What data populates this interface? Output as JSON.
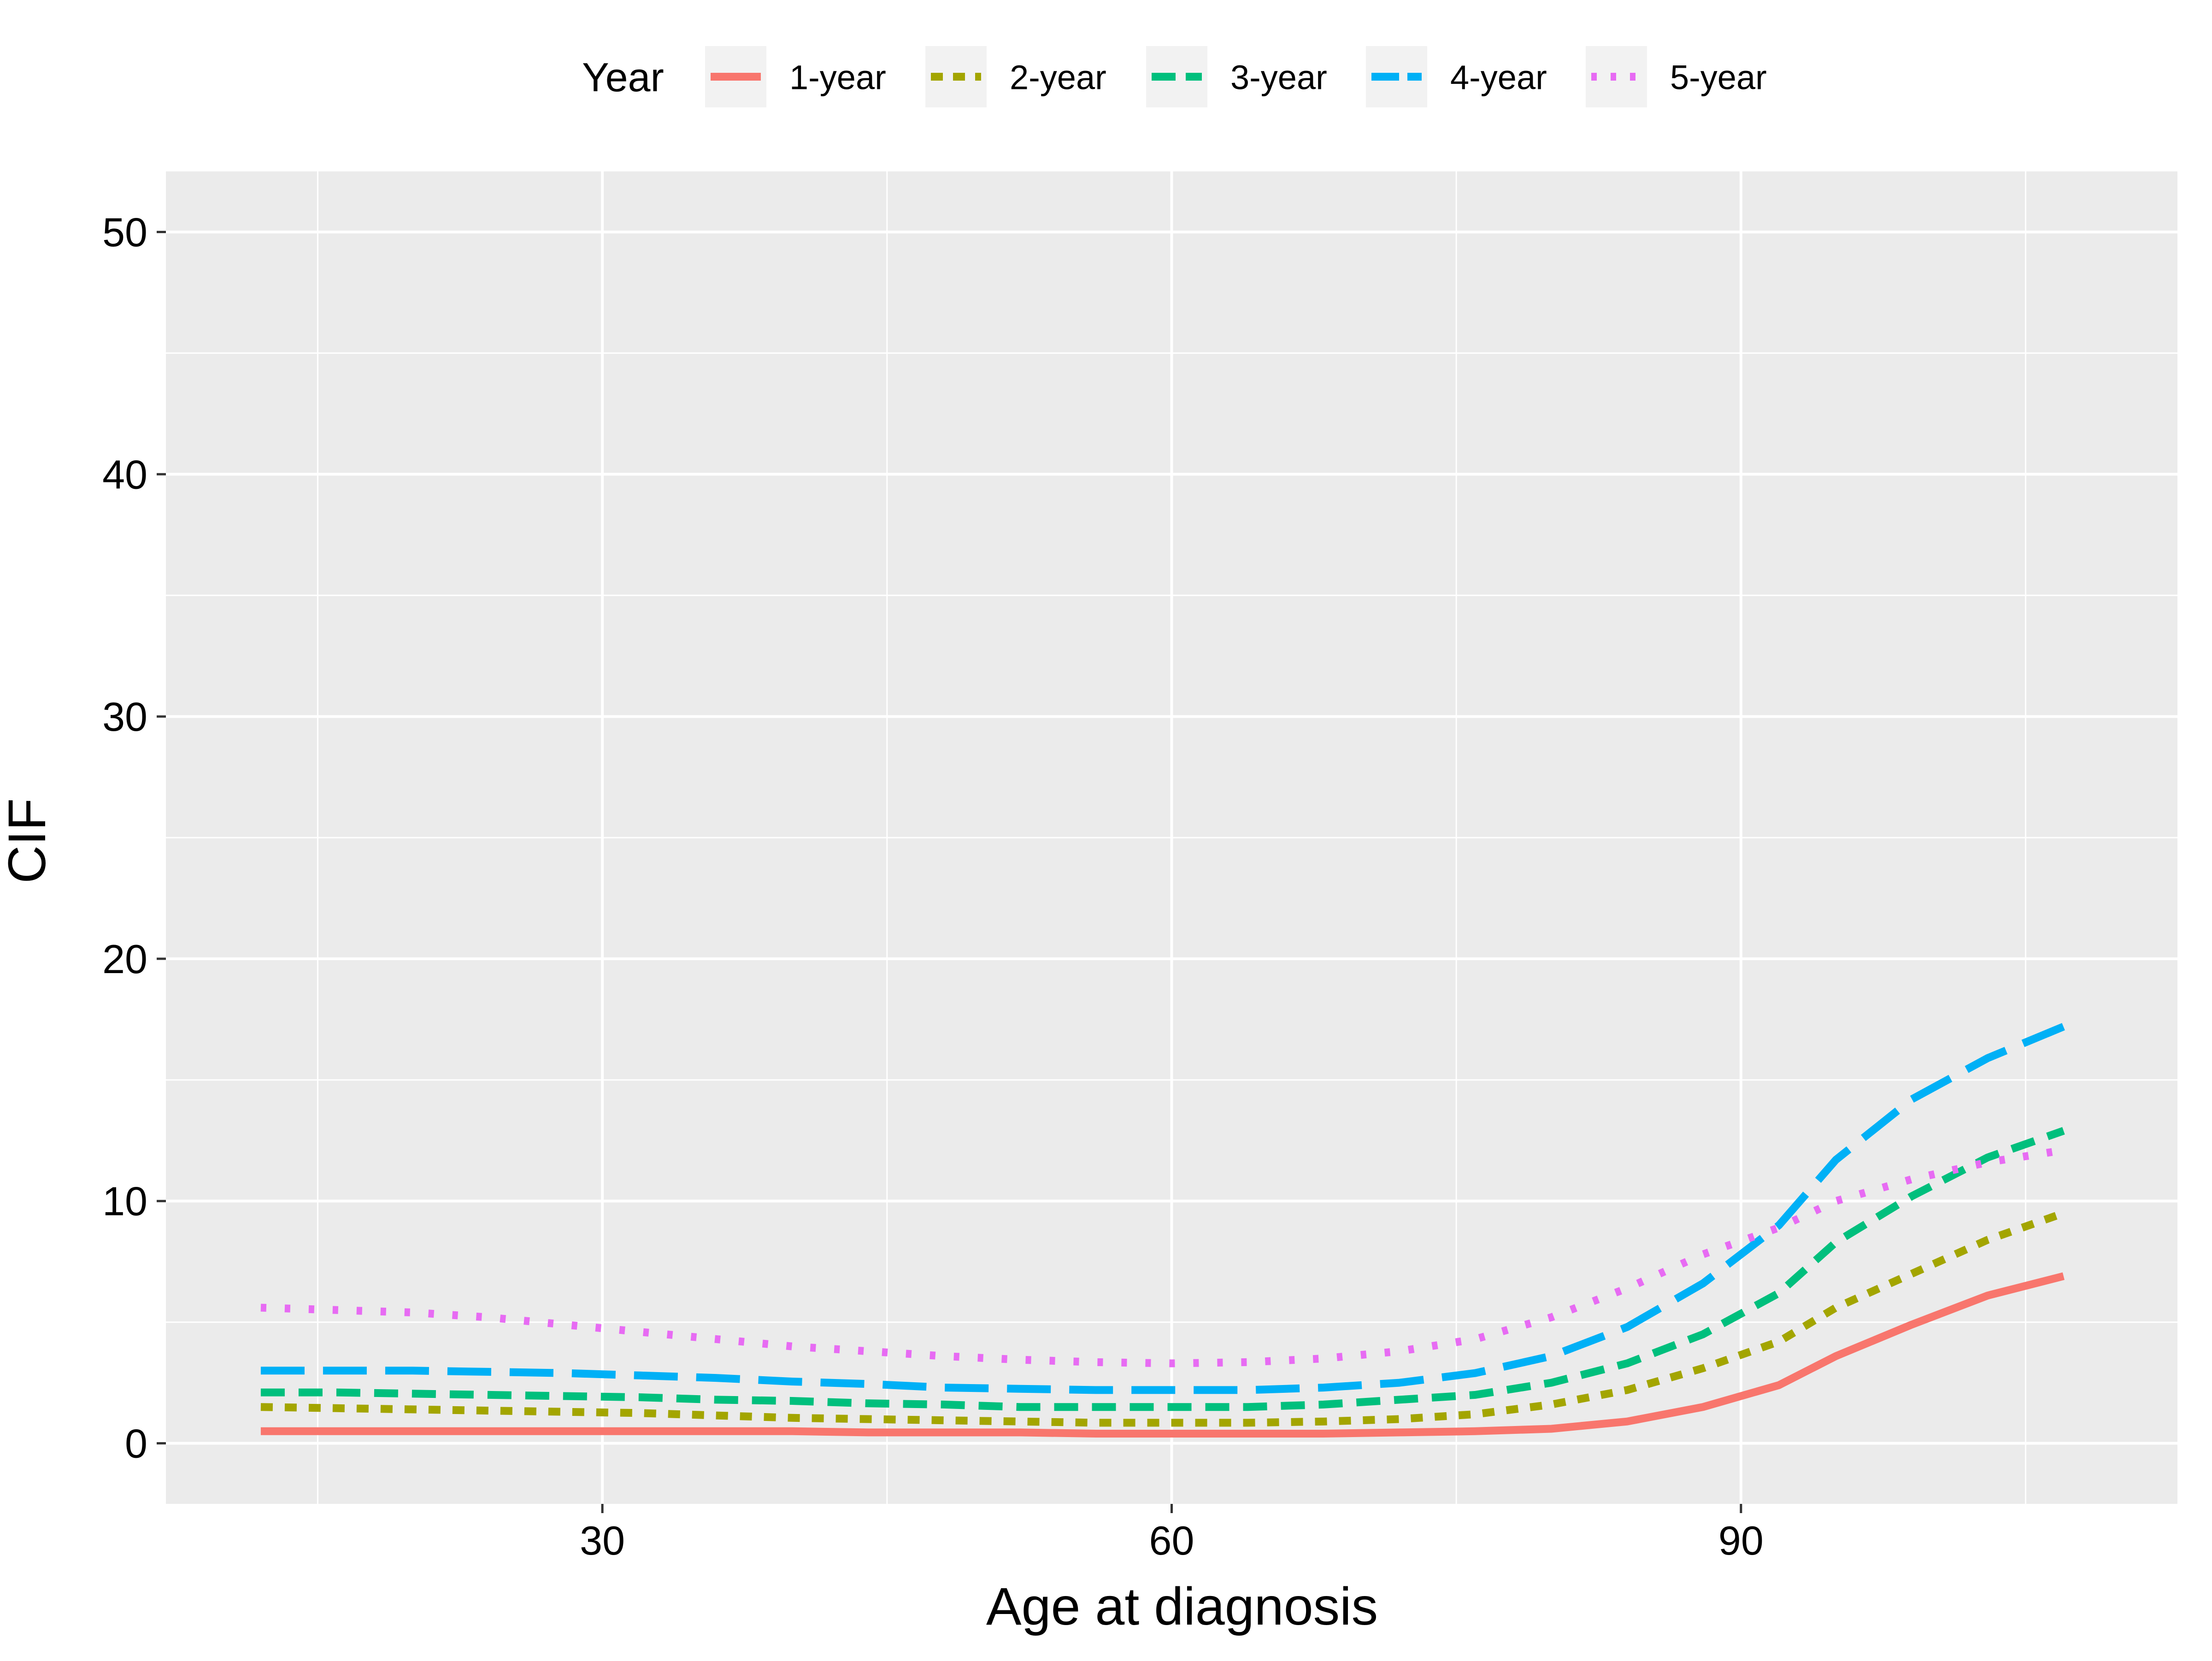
{
  "chart_data": {
    "type": "line",
    "title": "",
    "xlabel": "Age at diagnosis",
    "ylabel": "CIF",
    "xlim": [
      7,
      113
    ],
    "ylim": [
      -2.5,
      52.5
    ],
    "xticks": [
      30,
      60,
      90
    ],
    "xtick_labels": [
      "30",
      "60",
      "90"
    ],
    "xminor": [
      15,
      45,
      75,
      105
    ],
    "yticks": [
      0,
      10,
      20,
      30,
      40,
      50
    ],
    "ytick_labels": [
      "0",
      "10",
      "20",
      "30",
      "40",
      "50"
    ],
    "yminor": [
      5,
      15,
      25,
      35,
      45
    ],
    "grid": true,
    "legend_position": "top",
    "legend_title": "Year",
    "panel_background": "#EBEBEB",
    "x": [
      12,
      16,
      20,
      24,
      28,
      32,
      36,
      40,
      44,
      48,
      52,
      56,
      60,
      64,
      68,
      72,
      76,
      80,
      84,
      88,
      92,
      95,
      99,
      103,
      107
    ],
    "series": [
      {
        "name": "1-year",
        "color": "#F8766D",
        "dash": "solid",
        "values": [
          0.5,
          0.5,
          0.5,
          0.5,
          0.5,
          0.5,
          0.5,
          0.5,
          0.45,
          0.45,
          0.45,
          0.4,
          0.4,
          0.4,
          0.4,
          0.45,
          0.5,
          0.6,
          0.9,
          1.5,
          2.4,
          3.6,
          4.9,
          6.1,
          6.9
        ]
      },
      {
        "name": "2-year",
        "color": "#A3A500",
        "dash": "short-dash",
        "values": [
          1.5,
          1.45,
          1.4,
          1.35,
          1.3,
          1.25,
          1.15,
          1.05,
          1.0,
          0.95,
          0.9,
          0.85,
          0.85,
          0.85,
          0.9,
          1.0,
          1.2,
          1.6,
          2.2,
          3.1,
          4.2,
          5.6,
          7.0,
          8.4,
          9.5
        ]
      },
      {
        "name": "3-year",
        "color": "#00BF7D",
        "dash": "medium-dash",
        "values": [
          2.1,
          2.1,
          2.05,
          2.0,
          1.95,
          1.9,
          1.8,
          1.75,
          1.65,
          1.6,
          1.5,
          1.5,
          1.5,
          1.5,
          1.6,
          1.8,
          2.0,
          2.5,
          3.3,
          4.5,
          6.2,
          8.3,
          10.2,
          11.8,
          12.9
        ]
      },
      {
        "name": "4-year",
        "color": "#00B0F6",
        "dash": "long-dash",
        "values": [
          3.0,
          3.0,
          3.0,
          2.95,
          2.9,
          2.8,
          2.7,
          2.55,
          2.45,
          2.3,
          2.25,
          2.2,
          2.2,
          2.2,
          2.3,
          2.5,
          2.9,
          3.6,
          4.8,
          6.6,
          9.0,
          11.7,
          14.2,
          15.9,
          17.2
        ]
      },
      {
        "name": "5-year",
        "color": "#E76BF3",
        "dash": "dotted",
        "values": [
          5.6,
          5.5,
          5.4,
          5.2,
          4.9,
          4.6,
          4.3,
          4.0,
          3.8,
          3.6,
          3.45,
          3.35,
          3.3,
          3.35,
          3.5,
          3.8,
          4.3,
          5.2,
          6.4,
          7.8,
          8.9,
          10.0,
          10.9,
          11.6,
          12.1
        ]
      }
    ]
  }
}
